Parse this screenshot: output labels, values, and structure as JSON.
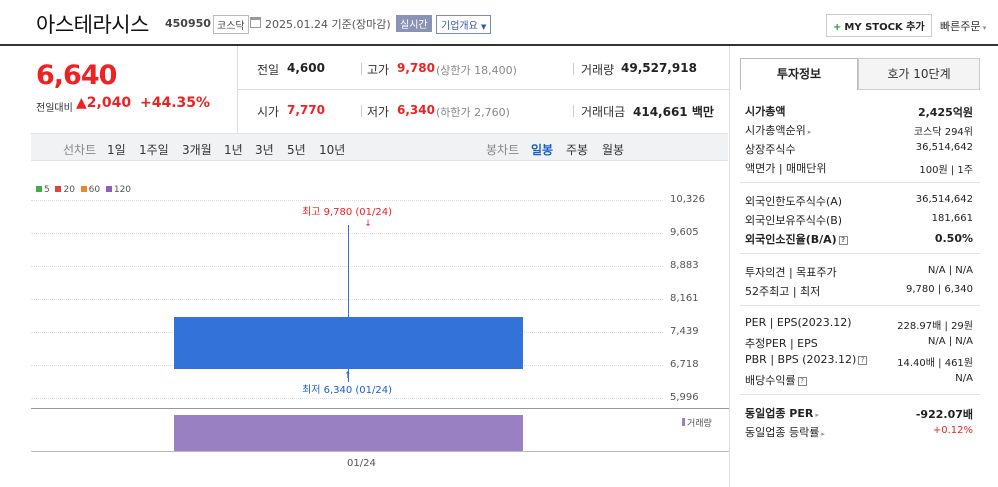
{
  "header": {
    "name": "아스테라시스",
    "code": "450950",
    "market": "코스닥",
    "date": "2025.01.24 기준(장마감)",
    "realtime": "실시간",
    "overview": "기업개요",
    "mystock": "MY STOCK 추가",
    "quick_order": "빠른주문"
  },
  "quote": {
    "price": "6,640",
    "change_label": "전일대비",
    "change": "2,040",
    "change_pct": "+44.35%",
    "prev_close_label": "전일",
    "prev_close": "4,600",
    "open_label": "시가",
    "open": "7,770",
    "high_label": "고가",
    "high": "9,780",
    "high_limit": "(상한가 18,400)",
    "low_label": "저가",
    "low": "6,340",
    "low_limit": "(하한가 2,760)",
    "volume_label": "거래량",
    "volume": "49,527,918",
    "amount_label": "거래대금",
    "amount": "414,661",
    "amount_unit": "백만"
  },
  "range_bar": {
    "line_label": "선차트",
    "periods": [
      "1일",
      "1주일",
      "3개월",
      "1년",
      "3년",
      "5년",
      "10년"
    ],
    "candle_label": "봉차트",
    "candle_periods": [
      "일봉",
      "주봉",
      "월봉"
    ],
    "selected_candle": "일봉"
  },
  "chart_data": {
    "type": "candlestick",
    "legend": [
      {
        "name": "5",
        "color": "#3cb043"
      },
      {
        "name": "20",
        "color": "#e0443c"
      },
      {
        "name": "60",
        "color": "#e8892c"
      },
      {
        "name": "120",
        "color": "#8e5ec6"
      }
    ],
    "yticks": [
      "10,326",
      "9,605",
      "8,883",
      "8,161",
      "7,439",
      "6,718",
      "5,996"
    ],
    "ylim": [
      5996,
      10326
    ],
    "candles": [
      {
        "date": "01/24",
        "open": 7770,
        "high": 9780,
        "low": 6340,
        "close": 6640
      }
    ],
    "high_annotation": "최고 9,780 (01/24)",
    "low_annotation": "최저 6,340 (01/24)",
    "volume_label": "거래량",
    "xlabel": "01/24",
    "up_color": "#e22",
    "down_color": "#3373d9",
    "volume_color": "#9980c2"
  },
  "panel": {
    "tab_info": "투자정보",
    "tab_hoga": "호가 10단계",
    "rows": [
      {
        "label": "시가총액",
        "value": "2,425억원",
        "bold": true
      },
      {
        "label": "시가총액순위",
        "value": "코스닥 294위"
      },
      {
        "label": "상장주식수",
        "value": "36,514,642"
      },
      {
        "label": "액면가 | 매매단위",
        "value": "100원 | 1주"
      },
      {
        "label": "외국인한도주식수(A)",
        "value": "36,514,642"
      },
      {
        "label": "외국인보유주식수(B)",
        "value": "181,661"
      },
      {
        "label": "외국인소진율(B/A)",
        "value": "0.50%",
        "bold": true
      },
      {
        "label": "투자의견 | 목표주가",
        "value": "N/A | N/A"
      },
      {
        "label": "52주최고 | 최저",
        "value": "9,780 | 6,340"
      },
      {
        "label": "PER | EPS(2023.12)",
        "value": "228.97배 | 29원"
      },
      {
        "label": "추정PER | EPS",
        "value": "N/A | N/A"
      },
      {
        "label": "PBR | BPS (2023.12)",
        "value": "14.40배 | 461원"
      },
      {
        "label": "배당수익률",
        "value": "N/A"
      },
      {
        "label": "동일업종 PER",
        "value": "-922.07배",
        "bold": true
      },
      {
        "label": "동일업종 등락률",
        "value": "+0.12%"
      }
    ]
  }
}
